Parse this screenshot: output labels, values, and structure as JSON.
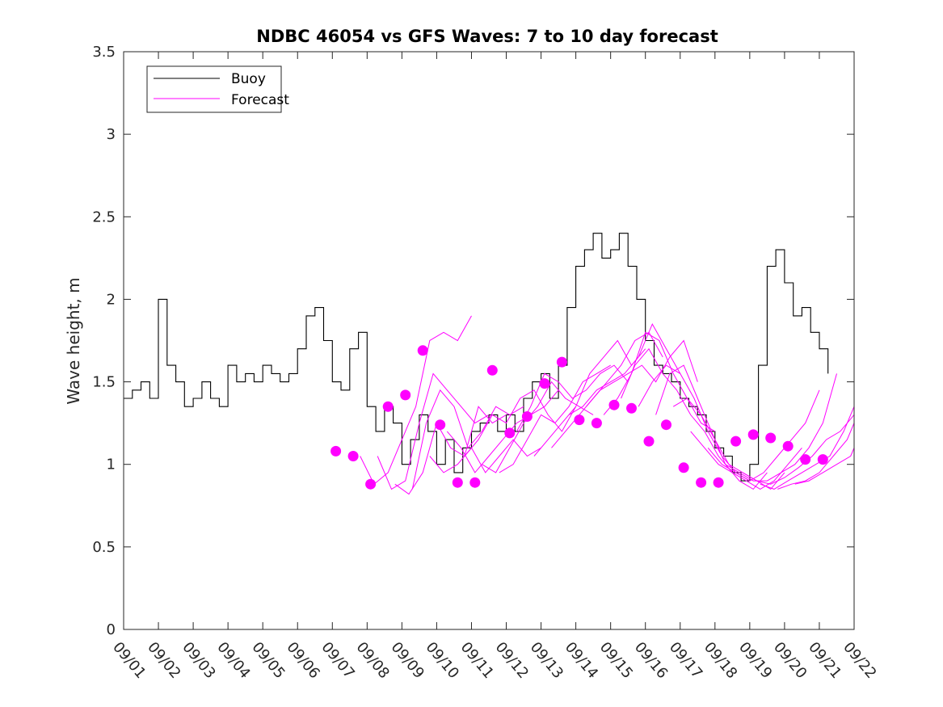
{
  "chart_data": {
    "type": "line",
    "title": "NDBC 46054 vs GFS Waves: 7 to 10 day forecast",
    "xlabel": "",
    "ylabel": "Wave height, m",
    "xlim": [
      0,
      21
    ],
    "ylim": [
      0,
      3.5
    ],
    "grid": false,
    "legend_position": "top-left",
    "x_tick_labels": [
      "09/01",
      "09/02",
      "09/03",
      "09/04",
      "09/05",
      "09/06",
      "09/07",
      "09/08",
      "09/09",
      "09/10",
      "09/11",
      "09/12",
      "09/13",
      "09/14",
      "09/15",
      "09/16",
      "09/17",
      "09/18",
      "09/19",
      "09/20",
      "09/21",
      "09/22"
    ],
    "y_ticks": [
      0,
      0.5,
      1,
      1.5,
      2,
      2.5,
      3,
      3.5
    ],
    "y_tick_labels": [
      "0",
      "0.5",
      "1",
      "1.5",
      "2",
      "2.5",
      "3",
      "3.5"
    ],
    "legend": [
      "Buoy",
      "Forecast"
    ],
    "colors": {
      "buoy": "#000000",
      "forecast": "#ff00ff"
    },
    "buoy": {
      "name": "Buoy",
      "x": [
        0,
        0.25,
        0.5,
        0.75,
        1,
        1.25,
        1.5,
        1.75,
        2,
        2.25,
        2.5,
        2.75,
        3,
        3.25,
        3.5,
        3.75,
        4,
        4.25,
        4.5,
        4.75,
        5,
        5.25,
        5.5,
        5.75,
        6,
        6.25,
        6.5,
        6.75,
        7,
        7.25,
        7.5,
        7.75,
        8,
        8.25,
        8.5,
        8.75,
        9,
        9.25,
        9.5,
        9.75,
        10,
        10.25,
        10.5,
        10.75,
        11,
        11.25,
        11.5,
        11.75,
        12,
        12.25,
        12.5,
        12.75,
        13,
        13.25,
        13.5,
        13.75,
        14,
        14.25,
        14.5,
        14.75,
        15,
        15.25,
        15.5,
        15.75,
        16,
        16.25,
        16.5,
        16.75,
        17,
        17.25,
        17.5,
        17.75,
        18,
        18.25,
        18.5,
        18.75,
        19,
        19.25,
        19.5,
        19.75,
        20,
        20.25
      ],
      "values": [
        1.4,
        1.45,
        1.5,
        1.4,
        2.0,
        1.6,
        1.5,
        1.35,
        1.4,
        1.5,
        1.4,
        1.35,
        1.6,
        1.5,
        1.55,
        1.5,
        1.6,
        1.55,
        1.5,
        1.55,
        1.7,
        1.9,
        1.95,
        1.75,
        1.5,
        1.45,
        1.7,
        1.8,
        1.35,
        1.2,
        1.35,
        1.25,
        1.0,
        1.15,
        1.3,
        1.2,
        1.0,
        1.15,
        0.95,
        1.1,
        1.2,
        1.25,
        1.3,
        1.2,
        1.3,
        1.2,
        1.4,
        1.5,
        1.55,
        1.4,
        1.6,
        1.95,
        2.2,
        2.3,
        2.4,
        2.25,
        2.3,
        2.4,
        2.2,
        2.0,
        1.75,
        1.6,
        1.55,
        1.5,
        1.4,
        1.35,
        1.3,
        1.2,
        1.1,
        1.05,
        0.95,
        0.9,
        1.0,
        1.6,
        2.2,
        2.3,
        2.1,
        1.9,
        1.95,
        1.8,
        1.7,
        1.55
      ]
    },
    "forecast_series": [
      {
        "name": "Forecast",
        "x": [
          6.8,
          7.2,
          7.6,
          8.0,
          8.4,
          8.8,
          9.2,
          9.6,
          10.0
        ],
        "values": [
          1.05,
          0.88,
          0.95,
          1.15,
          1.35,
          1.75,
          1.8,
          1.75,
          1.9
        ]
      },
      {
        "name": "Forecast",
        "x": [
          7.3,
          7.7,
          8.1,
          8.5,
          8.9,
          9.3,
          9.7,
          10.1,
          10.5
        ],
        "values": [
          1.05,
          0.85,
          0.9,
          1.25,
          1.55,
          1.45,
          1.35,
          1.25,
          1.3
        ]
      },
      {
        "name": "Forecast",
        "x": [
          7.8,
          8.2,
          8.6,
          9.0,
          9.4,
          9.8,
          10.2,
          10.6,
          11.0
        ],
        "values": [
          0.88,
          0.82,
          0.95,
          1.25,
          1.1,
          1.05,
          1.35,
          1.25,
          1.3
        ]
      },
      {
        "name": "Forecast",
        "x": [
          8.3,
          8.7,
          9.1,
          9.5,
          9.9,
          10.3,
          10.7,
          11.1,
          11.5
        ],
        "values": [
          0.85,
          1.25,
          1.45,
          1.35,
          1.1,
          1.2,
          1.35,
          1.3,
          1.35
        ]
      },
      {
        "name": "Forecast",
        "x": [
          8.8,
          9.2,
          9.6,
          10.0,
          10.4,
          10.8,
          11.2,
          11.6,
          12.0
        ],
        "values": [
          1.05,
          0.95,
          1.0,
          1.1,
          0.95,
          1.05,
          1.15,
          1.05,
          1.1
        ]
      },
      {
        "name": "Forecast",
        "x": [
          9.3,
          9.7,
          10.1,
          10.5,
          10.9,
          11.3,
          11.7,
          12.1,
          12.5
        ],
        "values": [
          1.2,
          1.1,
          0.95,
          1.05,
          1.15,
          1.25,
          1.3,
          1.35,
          1.45
        ]
      },
      {
        "name": "Forecast",
        "x": [
          9.8,
          10.2,
          10.6,
          11.0,
          11.4,
          11.8,
          12.2,
          12.6,
          13.0
        ],
        "values": [
          1.05,
          1.15,
          1.3,
          1.25,
          1.4,
          1.45,
          1.3,
          1.2,
          1.35
        ]
      },
      {
        "name": "Forecast",
        "x": [
          10.3,
          10.7,
          11.1,
          11.5,
          11.9,
          12.3,
          12.7,
          13.1,
          13.5
        ],
        "values": [
          1.0,
          0.95,
          1.1,
          1.25,
          1.35,
          1.5,
          1.4,
          1.35,
          1.3
        ]
      },
      {
        "name": "Forecast",
        "x": [
          10.8,
          11.2,
          11.6,
          12.0,
          12.4,
          12.8,
          13.2,
          13.6,
          14.0
        ],
        "values": [
          0.95,
          1.0,
          1.15,
          1.3,
          1.25,
          1.35,
          1.5,
          1.55,
          1.6
        ]
      },
      {
        "name": "Forecast",
        "x": [
          11.3,
          11.7,
          12.1,
          12.5,
          12.9,
          13.3,
          13.7,
          14.1,
          14.5
        ],
        "values": [
          1.2,
          1.35,
          1.55,
          1.5,
          1.4,
          1.45,
          1.55,
          1.6,
          1.5
        ]
      },
      {
        "name": "Forecast",
        "x": [
          11.8,
          12.2,
          12.6,
          13.0,
          13.4,
          13.8,
          14.2,
          14.6,
          15.0
        ],
        "values": [
          1.05,
          1.15,
          1.25,
          1.35,
          1.55,
          1.65,
          1.75,
          1.6,
          1.7
        ]
      },
      {
        "name": "Forecast",
        "x": [
          12.3,
          12.7,
          13.1,
          13.5,
          13.9,
          14.3,
          14.7,
          15.1,
          15.5
        ],
        "values": [
          1.1,
          1.2,
          1.3,
          1.4,
          1.5,
          1.6,
          1.75,
          1.8,
          1.65
        ]
      },
      {
        "name": "Forecast",
        "x": [
          12.8,
          13.2,
          13.6,
          14.0,
          14.4,
          14.8,
          15.2,
          15.6,
          16.0
        ],
        "values": [
          1.3,
          1.35,
          1.45,
          1.5,
          1.55,
          1.65,
          1.85,
          1.7,
          1.55
        ]
      },
      {
        "name": "Forecast",
        "x": [
          13.3,
          13.7,
          14.1,
          14.5,
          14.9,
          15.3,
          15.7,
          16.1,
          16.5
        ],
        "values": [
          1.35,
          1.45,
          1.5,
          1.55,
          1.6,
          1.5,
          1.65,
          1.75,
          1.5
        ]
      },
      {
        "name": "Forecast",
        "x": [
          13.8,
          14.2,
          14.6,
          15.0,
          15.4,
          15.8,
          16.2,
          16.6,
          17.0
        ],
        "values": [
          1.3,
          1.4,
          1.55,
          1.8,
          1.75,
          1.55,
          1.4,
          1.25,
          1.2
        ]
      },
      {
        "name": "Forecast",
        "x": [
          14.3,
          14.7,
          15.1,
          15.5,
          15.9,
          16.3,
          16.7,
          17.1,
          17.5
        ],
        "values": [
          1.4,
          1.6,
          1.7,
          1.55,
          1.45,
          1.3,
          1.2,
          1.05,
          0.95
        ]
      },
      {
        "name": "Forecast",
        "x": [
          14.8,
          15.2,
          15.6,
          16.0,
          16.4,
          16.8,
          17.2,
          17.6,
          18.0
        ],
        "values": [
          1.35,
          1.5,
          1.6,
          1.55,
          1.4,
          1.2,
          1.05,
          0.95,
          0.9
        ]
      },
      {
        "name": "Forecast",
        "x": [
          15.3,
          15.7,
          16.1,
          16.5,
          16.9,
          17.3,
          17.7,
          18.1,
          18.5
        ],
        "values": [
          1.3,
          1.55,
          1.6,
          1.4,
          1.2,
          1.0,
          0.9,
          0.85,
          0.95
        ]
      },
      {
        "name": "Forecast",
        "x": [
          15.8,
          16.2,
          16.6,
          17.0,
          17.4,
          17.8,
          18.2,
          18.6,
          19.0
        ],
        "values": [
          1.35,
          1.4,
          1.3,
          1.15,
          1.0,
          0.95,
          0.9,
          0.85,
          0.95
        ]
      },
      {
        "name": "Forecast",
        "x": [
          16.3,
          16.7,
          17.1,
          17.5,
          17.9,
          18.3,
          18.7,
          19.1,
          19.5
        ],
        "values": [
          1.2,
          1.1,
          1.0,
          0.95,
          0.9,
          0.85,
          0.9,
          1.0,
          1.1
        ]
      },
      {
        "name": "Forecast",
        "x": [
          16.8,
          17.2,
          17.6,
          18.0,
          18.4,
          18.8,
          19.2,
          19.6,
          20.0
        ],
        "values": [
          1.1,
          1.0,
          0.95,
          0.9,
          0.95,
          1.05,
          1.15,
          1.25,
          1.45
        ]
      },
      {
        "name": "Forecast",
        "x": [
          17.3,
          17.7,
          18.1,
          18.5,
          18.9,
          19.3,
          19.7,
          20.1,
          20.5
        ],
        "values": [
          1.0,
          0.95,
          0.9,
          0.9,
          0.95,
          1.0,
          1.1,
          1.25,
          1.55
        ]
      },
      {
        "name": "Forecast",
        "x": [
          17.8,
          18.2,
          18.6,
          19.0,
          19.4,
          19.8,
          20.2,
          20.6,
          21.0
        ],
        "values": [
          0.95,
          0.9,
          0.88,
          0.92,
          0.98,
          1.05,
          1.15,
          1.2,
          1.3
        ]
      },
      {
        "name": "Forecast",
        "x": [
          18.3,
          18.7,
          19.1,
          19.5,
          19.9,
          20.3,
          20.7,
          21.0
        ],
        "values": [
          0.88,
          0.85,
          0.9,
          0.95,
          1.0,
          1.05,
          1.2,
          1.35
        ]
      },
      {
        "name": "Forecast",
        "x": [
          18.8,
          19.2,
          19.6,
          20.0,
          20.4,
          20.8,
          21.0
        ],
        "values": [
          0.85,
          0.88,
          0.9,
          0.95,
          1.05,
          1.15,
          1.25
        ]
      },
      {
        "name": "Forecast",
        "x": [
          19.3,
          19.7,
          20.1,
          20.5,
          20.9,
          21.0
        ],
        "values": [
          0.88,
          0.9,
          0.95,
          1.0,
          1.05,
          1.1
        ]
      }
    ],
    "forecast_markers": {
      "name": "Forecast",
      "x": [
        6.1,
        6.6,
        7.1,
        7.6,
        8.1,
        8.6,
        9.1,
        9.6,
        10.1,
        10.6,
        11.1,
        11.6,
        12.1,
        12.6,
        13.1,
        13.6,
        14.1,
        14.6,
        15.1,
        15.6,
        16.1,
        16.6,
        17.1,
        17.6,
        18.1,
        18.6,
        19.1,
        19.6,
        20.1
      ],
      "values": [
        1.08,
        1.05,
        0.88,
        1.35,
        1.42,
        1.69,
        1.24,
        0.89,
        0.89,
        1.57,
        1.19,
        1.29,
        1.49,
        1.62,
        1.27,
        1.25,
        1.36,
        1.34,
        1.14,
        1.24,
        0.98,
        0.89,
        0.89,
        1.14,
        1.18,
        1.16,
        1.11,
        1.03,
        1.03
      ]
    }
  }
}
